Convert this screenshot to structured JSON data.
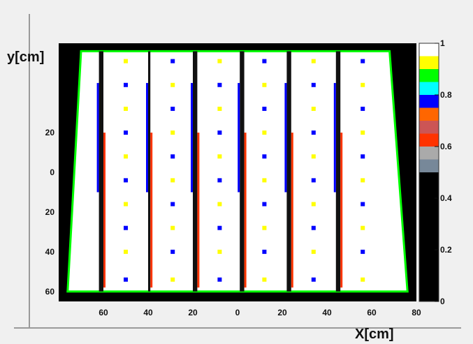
{
  "chart_data": {
    "type": "heatmap",
    "title": "",
    "xlabel": "X[cm]",
    "ylabel": "y[cm]",
    "x_tick_labels": [
      "60",
      "40",
      "20",
      "0",
      "20",
      "40",
      "60",
      "80"
    ],
    "x_tick_values": [
      -60,
      -40,
      -20,
      0,
      20,
      40,
      60,
      80
    ],
    "y_tick_labels": [
      "20",
      "0",
      "20",
      "40",
      "60"
    ],
    "y_tick_values": [
      20,
      0,
      -20,
      -40,
      -60
    ],
    "xlim": [
      -80,
      80
    ],
    "ylim": [
      -65,
      65
    ],
    "z_range": [
      0,
      1
    ],
    "colorbar_ticks": [
      {
        "value": 1.0,
        "label": "1"
      },
      {
        "value": 0.8,
        "label": "0.8"
      },
      {
        "value": 0.6,
        "label": "0.6"
      },
      {
        "value": 0.4,
        "label": "0.4"
      },
      {
        "value": 0.2,
        "label": "0.2"
      },
      {
        "value": 0.0,
        "label": "0"
      }
    ],
    "colorbar_bands": [
      {
        "from": 0.95,
        "to": 1.0,
        "color": "#ffffff"
      },
      {
        "from": 0.9,
        "to": 0.95,
        "color": "#ffff00"
      },
      {
        "from": 0.85,
        "to": 0.9,
        "color": "#00ff00"
      },
      {
        "from": 0.8,
        "to": 0.85,
        "color": "#00ffff"
      },
      {
        "from": 0.75,
        "to": 0.8,
        "color": "#0000ff"
      },
      {
        "from": 0.7,
        "to": 0.75,
        "color": "#ff6600"
      },
      {
        "from": 0.65,
        "to": 0.7,
        "color": "#cc5555"
      },
      {
        "from": 0.6,
        "to": 0.65,
        "color": "#ff3300"
      },
      {
        "from": 0.55,
        "to": 0.6,
        "color": "#aaaaaa"
      },
      {
        "from": 0.5,
        "to": 0.55,
        "color": "#778899"
      },
      {
        "from": 0.0,
        "to": 0.5,
        "color": "#000000"
      }
    ],
    "background_color": "#000000",
    "panels": [
      {
        "x_min": -72,
        "x_max": -62
      },
      {
        "x_min": -60,
        "x_max": -40
      },
      {
        "x_min": -39,
        "x_max": -20
      },
      {
        "x_min": -18,
        "x_max": 1
      },
      {
        "x_min": 3,
        "x_max": 22
      },
      {
        "x_min": 24,
        "x_max": 44
      },
      {
        "x_min": 46,
        "x_max": 64
      }
    ],
    "active_region_polygon": [
      [
        -70,
        61
      ],
      [
        68,
        61
      ],
      [
        76,
        -60
      ],
      [
        -76,
        -60
      ]
    ],
    "spot_rows_y": [
      56,
      44,
      32,
      20,
      8,
      -4,
      -16,
      -28,
      -40,
      -54
    ],
    "spot_columns_x": [
      -50,
      -29,
      -8,
      12,
      34,
      56
    ]
  }
}
